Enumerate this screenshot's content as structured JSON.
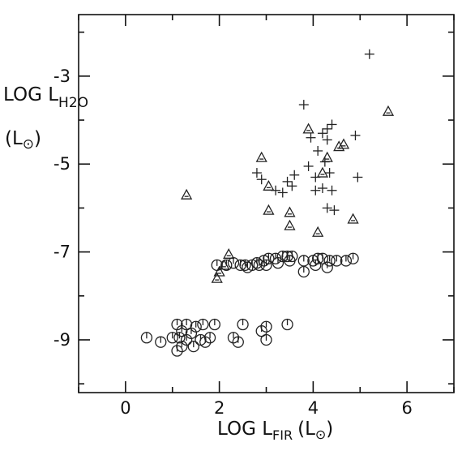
{
  "chart_data": {
    "type": "scatter",
    "title": "",
    "xlabel": {
      "prefix": "LOG L",
      "subscript": "FIR",
      "unit": "(L",
      "unit_close": ")"
    },
    "ylabel": {
      "prefix": "LOG L",
      "subscript": "H2O",
      "unit": "(L",
      "unit_close": ")"
    },
    "xlim": [
      -1.0,
      7.0
    ],
    "ylim": [
      -10.2,
      -1.6
    ],
    "xticks": [
      {
        "value": 0,
        "label": "0"
      },
      {
        "value": 2,
        "label": "2"
      },
      {
        "value": 4,
        "label": "4"
      },
      {
        "value": 6,
        "label": "6"
      }
    ],
    "yticks": [
      {
        "value": -3,
        "label": "-3"
      },
      {
        "value": -5,
        "label": "-5"
      },
      {
        "value": -7,
        "label": "-7"
      },
      {
        "value": -9,
        "label": "-9"
      }
    ],
    "grid": false,
    "series": [
      {
        "marker": "plus",
        "points": [
          [
            5.2,
            -2.5
          ],
          [
            3.8,
            -3.65
          ],
          [
            4.4,
            -4.1
          ],
          [
            4.3,
            -4.2
          ],
          [
            4.2,
            -4.3
          ],
          [
            4.9,
            -4.35
          ],
          [
            3.95,
            -4.4
          ],
          [
            4.3,
            -4.45
          ],
          [
            4.1,
            -4.7
          ],
          [
            4.25,
            -4.95
          ],
          [
            4.05,
            -5.3
          ],
          [
            4.35,
            -5.2
          ],
          [
            3.9,
            -5.05
          ],
          [
            4.95,
            -5.3
          ],
          [
            3.6,
            -5.25
          ],
          [
            3.45,
            -5.4
          ],
          [
            3.55,
            -5.5
          ],
          [
            2.8,
            -5.2
          ],
          [
            2.9,
            -5.35
          ],
          [
            3.2,
            -5.6
          ],
          [
            3.35,
            -5.65
          ],
          [
            4.05,
            -5.6
          ],
          [
            4.2,
            -5.55
          ],
          [
            4.4,
            -5.6
          ],
          [
            4.3,
            -6.0
          ],
          [
            4.45,
            -6.05
          ]
        ]
      },
      {
        "marker": "triangle",
        "points": [
          [
            5.6,
            -3.8
          ],
          [
            3.9,
            -4.2
          ],
          [
            4.65,
            -4.55
          ],
          [
            4.55,
            -4.6
          ],
          [
            4.3,
            -4.85
          ],
          [
            2.9,
            -4.85
          ],
          [
            4.2,
            -5.2
          ],
          [
            3.05,
            -5.5
          ],
          [
            1.3,
            -5.7
          ],
          [
            3.05,
            -6.05
          ],
          [
            3.5,
            -6.1
          ],
          [
            4.85,
            -6.25
          ],
          [
            3.5,
            -6.4
          ],
          [
            4.1,
            -6.55
          ],
          [
            2.2,
            -7.05
          ],
          [
            2.1,
            -7.3
          ],
          [
            2.0,
            -7.45
          ],
          [
            1.95,
            -7.6
          ]
        ]
      },
      {
        "marker": "circle",
        "points": [
          [
            2.3,
            -7.25
          ],
          [
            2.45,
            -7.3
          ],
          [
            2.55,
            -7.3
          ],
          [
            2.7,
            -7.3
          ],
          [
            2.8,
            -7.25
          ],
          [
            2.95,
            -7.2
          ],
          [
            3.05,
            -7.15
          ],
          [
            3.2,
            -7.15
          ],
          [
            3.35,
            -7.1
          ],
          [
            3.45,
            -7.1
          ],
          [
            3.55,
            -7.1
          ],
          [
            2.6,
            -7.35
          ],
          [
            2.85,
            -7.3
          ],
          [
            3.0,
            -7.3
          ],
          [
            3.25,
            -7.25
          ],
          [
            3.5,
            -7.2
          ],
          [
            3.8,
            -7.2
          ],
          [
            4.0,
            -7.2
          ],
          [
            4.1,
            -7.15
          ],
          [
            4.2,
            -7.15
          ],
          [
            4.35,
            -7.2
          ],
          [
            4.5,
            -7.2
          ],
          [
            4.7,
            -7.2
          ],
          [
            4.85,
            -7.15
          ],
          [
            4.3,
            -7.35
          ],
          [
            3.8,
            -7.45
          ],
          [
            4.05,
            -7.3
          ],
          [
            1.95,
            -7.3
          ],
          [
            2.15,
            -7.3
          ],
          [
            1.1,
            -8.65
          ],
          [
            1.3,
            -8.65
          ],
          [
            1.5,
            -8.7
          ],
          [
            1.65,
            -8.65
          ],
          [
            1.9,
            -8.65
          ],
          [
            2.5,
            -8.65
          ],
          [
            3.0,
            -8.7
          ],
          [
            3.45,
            -8.65
          ],
          [
            2.9,
            -8.8
          ],
          [
            1.2,
            -8.8
          ],
          [
            1.4,
            -8.85
          ],
          [
            1.15,
            -8.95
          ],
          [
            0.45,
            -8.95
          ],
          [
            0.75,
            -9.05
          ],
          [
            1.0,
            -8.95
          ],
          [
            1.3,
            -9.0
          ],
          [
            1.6,
            -9.0
          ],
          [
            1.8,
            -8.95
          ],
          [
            2.3,
            -8.95
          ],
          [
            2.4,
            -9.05
          ],
          [
            3.0,
            -9.0
          ],
          [
            1.2,
            -9.15
          ],
          [
            1.45,
            -9.15
          ],
          [
            1.1,
            -9.25
          ],
          [
            1.7,
            -9.05
          ]
        ]
      }
    ]
  }
}
